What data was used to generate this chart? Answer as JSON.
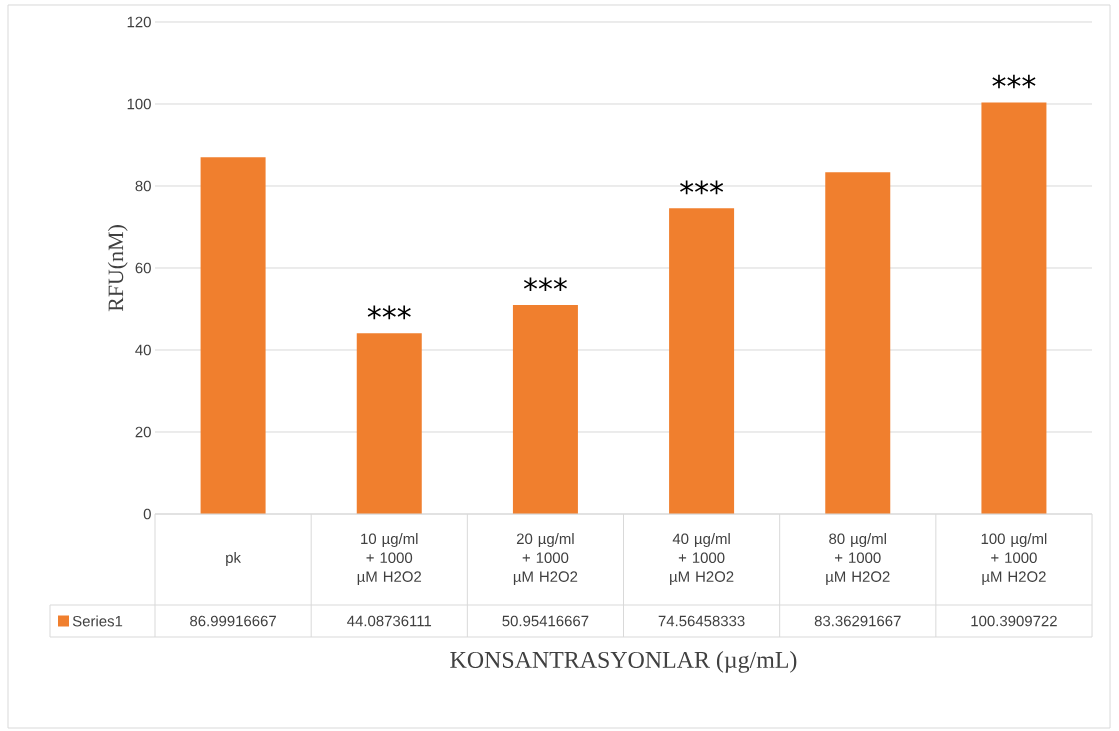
{
  "chart_data": {
    "type": "bar",
    "xlabel": "KONSANTRASYONLAR (µg/mL)",
    "ylabel": "RFU(nM)",
    "categories": [
      "pk",
      "10 µg/ml + 1000 µM H2O2",
      "20 µg/ml + 1000 µM H2O2",
      "40 µg/ml + 1000 µM H2O2",
      "80 µg/ml + 1000 µM H2O2",
      "100 µg/ml + 1000 µM H2O2"
    ],
    "series": [
      {
        "name": "Series1",
        "color": "#f07f2e",
        "values": [
          86.99916667,
          44.08736111,
          50.95416667,
          74.56458333,
          83.36291667,
          100.3909722
        ]
      }
    ],
    "ylim": [
      0,
      120
    ],
    "yticks": [
      0,
      20,
      40,
      60,
      80,
      100,
      120
    ],
    "grid": "y",
    "data_labels": true,
    "legend": "bottom",
    "annotations": [
      {
        "text": "***",
        "x": "10 µg/ml + 1000 µM H2O2",
        "y": 44.08736111
      },
      {
        "text": "***",
        "x": "20 µg/ml + 1000 µM H2O2",
        "y": 50.95416667
      },
      {
        "text": "***",
        "x": "40 µg/ml + 1000 µM H2O2",
        "y": 74.56458333
      },
      {
        "text": "***",
        "x": "100 µg/ml + 1000 µM H2O2",
        "y": 100.3909722
      }
    ]
  }
}
